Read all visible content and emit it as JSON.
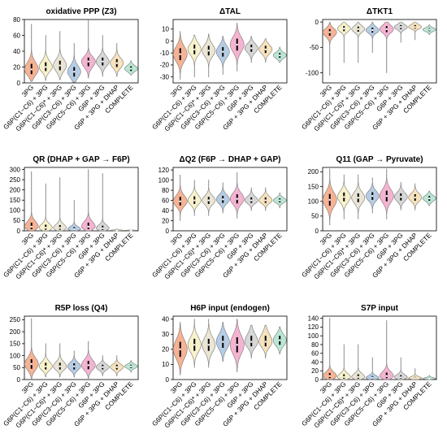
{
  "colors": [
    "#f4a582",
    "#f7f0c2",
    "#e6e0cc",
    "#a9c4e0",
    "#f2a7c9",
    "#d0d0d0",
    "#f4ddb0",
    "#aee3cc"
  ],
  "categories": [
    "3PG",
    "G6P(C1−C6) + 3PG",
    "G6P(C1−C6)* + 3PG",
    "G6P(C3−C6) + 3PG",
    "G6P(C5−C6) + 3PG",
    "G6P + 3PG",
    "G6P + 3PG + DHAP",
    "COMPLETE"
  ],
  "chart_data": [
    {
      "type": "violin",
      "title": "oxidative PPP (Z3)",
      "ylim": [
        0,
        80
      ],
      "yticks": [
        0,
        20,
        40,
        60,
        80
      ],
      "series": [
        {
          "median": 17,
          "q1": 11,
          "q3": 24,
          "min": 2,
          "max": 74,
          "width": 0.36
        },
        {
          "median": 20,
          "q1": 15,
          "q3": 26,
          "min": 3,
          "max": 60,
          "width": 0.34
        },
        {
          "median": 22,
          "q1": 16,
          "q3": 28,
          "min": 4,
          "max": 65,
          "width": 0.34
        },
        {
          "median": 14,
          "q1": 8,
          "q3": 20,
          "min": 1,
          "max": 50,
          "width": 0.34
        },
        {
          "median": 27,
          "q1": 21,
          "q3": 32,
          "min": 6,
          "max": 80,
          "width": 0.36
        },
        {
          "median": 27,
          "q1": 22,
          "q3": 32,
          "min": 8,
          "max": 60,
          "width": 0.34
        },
        {
          "median": 25,
          "q1": 20,
          "q3": 30,
          "min": 8,
          "max": 50,
          "width": 0.34
        },
        {
          "median": 18,
          "q1": 15,
          "q3": 21,
          "min": 10,
          "max": 28,
          "width": 0.34
        }
      ]
    },
    {
      "type": "violin",
      "title": "ΔTAL",
      "ylim": [
        -35,
        18
      ],
      "yticks": [
        -30,
        -20,
        -10,
        0,
        10
      ],
      "series": [
        {
          "median": -11,
          "q1": -16,
          "q3": -6,
          "min": -32,
          "max": 8,
          "width": 0.36
        },
        {
          "median": -7,
          "q1": -11,
          "q3": -3,
          "min": -30,
          "max": 5,
          "width": 0.34
        },
        {
          "median": -8,
          "q1": -12,
          "q3": -4,
          "min": -30,
          "max": 6,
          "width": 0.34
        },
        {
          "median": -9,
          "q1": -13,
          "q3": -5,
          "min": -28,
          "max": 4,
          "width": 0.34
        },
        {
          "median": -3,
          "q1": -8,
          "q3": 2,
          "min": -25,
          "max": 15,
          "width": 0.36
        },
        {
          "median": -6,
          "q1": -9,
          "q3": -3,
          "min": -18,
          "max": 4,
          "width": 0.34
        },
        {
          "median": -7,
          "q1": -10,
          "q3": -4,
          "min": -18,
          "max": 2,
          "width": 0.34
        },
        {
          "median": -12,
          "q1": -14,
          "q3": -10,
          "min": -18,
          "max": -5,
          "width": 0.34
        }
      ]
    },
    {
      "type": "violin",
      "title": "ΔTKT1",
      "ylim": [
        -120,
        5
      ],
      "yticks": [
        -100,
        -50,
        0
      ],
      "series": [
        {
          "median": -20,
          "q1": -27,
          "q3": -14,
          "min": -105,
          "max": 0,
          "width": 0.36
        },
        {
          "median": -13,
          "q1": -18,
          "q3": -8,
          "min": -80,
          "max": 0,
          "width": 0.34
        },
        {
          "median": -14,
          "q1": -19,
          "q3": -9,
          "min": -80,
          "max": 0,
          "width": 0.34
        },
        {
          "median": -16,
          "q1": -21,
          "q3": -11,
          "min": -60,
          "max": 0,
          "width": 0.34
        },
        {
          "median": -14,
          "q1": -20,
          "q3": -8,
          "min": -100,
          "max": 0,
          "width": 0.36
        },
        {
          "median": -10,
          "q1": -14,
          "q3": -6,
          "min": -40,
          "max": 0,
          "width": 0.34
        },
        {
          "median": -10,
          "q1": -13,
          "q3": -6,
          "min": -35,
          "max": 0,
          "width": 0.34
        },
        {
          "median": -15,
          "q1": -18,
          "q3": -12,
          "min": -25,
          "max": -5,
          "width": 0.34
        }
      ]
    },
    {
      "type": "violin",
      "title": "QR (DHAP + GAP → F6P)",
      "ylim": [
        0,
        310
      ],
      "yticks": [
        0,
        50,
        100,
        150,
        200,
        250,
        300
      ],
      "series": [
        {
          "median": 20,
          "q1": 8,
          "q3": 40,
          "min": 0,
          "max": 290,
          "width": 0.36
        },
        {
          "median": 15,
          "q1": 5,
          "q3": 30,
          "min": 0,
          "max": 230,
          "width": 0.34
        },
        {
          "median": 14,
          "q1": 5,
          "q3": 28,
          "min": 0,
          "max": 260,
          "width": 0.34
        },
        {
          "median": 8,
          "q1": 3,
          "q3": 18,
          "min": 0,
          "max": 150,
          "width": 0.34
        },
        {
          "median": 20,
          "q1": 8,
          "q3": 40,
          "min": 0,
          "max": 300,
          "width": 0.36
        },
        {
          "median": 12,
          "q1": 4,
          "q3": 25,
          "min": 0,
          "max": 280,
          "width": 0.34
        },
        {
          "median": 2,
          "q1": 1,
          "q3": 4,
          "min": 0,
          "max": 10,
          "width": 0.34
        },
        {
          "median": 2,
          "q1": 1,
          "q3": 3,
          "min": 0,
          "max": 6,
          "width": 0.34
        }
      ]
    },
    {
      "type": "violin",
      "title": "ΔQ2 (F6P → DHAP + GAP)",
      "ylim": [
        0,
        125
      ],
      "yticks": [
        0,
        20,
        40,
        60,
        80,
        100,
        120
      ],
      "series": [
        {
          "median": 58,
          "q1": 50,
          "q3": 67,
          "min": 20,
          "max": 110,
          "width": 0.36
        },
        {
          "median": 60,
          "q1": 53,
          "q3": 68,
          "min": 30,
          "max": 100,
          "width": 0.34
        },
        {
          "median": 60,
          "q1": 53,
          "q3": 67,
          "min": 30,
          "max": 100,
          "width": 0.34
        },
        {
          "median": 62,
          "q1": 55,
          "q3": 69,
          "min": 35,
          "max": 95,
          "width": 0.34
        },
        {
          "median": 63,
          "q1": 54,
          "q3": 72,
          "min": 25,
          "max": 115,
          "width": 0.36
        },
        {
          "median": 60,
          "q1": 55,
          "q3": 66,
          "min": 40,
          "max": 85,
          "width": 0.34
        },
        {
          "median": 60,
          "q1": 55,
          "q3": 66,
          "min": 40,
          "max": 85,
          "width": 0.34
        },
        {
          "median": 60,
          "q1": 56,
          "q3": 64,
          "min": 45,
          "max": 75,
          "width": 0.34
        }
      ]
    },
    {
      "type": "violin",
      "title": "Q11 (GAP → Pyruvate)",
      "ylim": [
        0,
        215
      ],
      "yticks": [
        0,
        50,
        100,
        150,
        200
      ],
      "series": [
        {
          "median": 105,
          "q1": 85,
          "q3": 125,
          "min": 20,
          "max": 210,
          "width": 0.36
        },
        {
          "median": 115,
          "q1": 100,
          "q3": 130,
          "min": 40,
          "max": 190,
          "width": 0.34
        },
        {
          "median": 112,
          "q1": 97,
          "q3": 127,
          "min": 40,
          "max": 190,
          "width": 0.34
        },
        {
          "median": 118,
          "q1": 105,
          "q3": 131,
          "min": 60,
          "max": 180,
          "width": 0.34
        },
        {
          "median": 118,
          "q1": 100,
          "q3": 136,
          "min": 40,
          "max": 210,
          "width": 0.36
        },
        {
          "median": 115,
          "q1": 103,
          "q3": 127,
          "min": 70,
          "max": 165,
          "width": 0.34
        },
        {
          "median": 113,
          "q1": 102,
          "q3": 124,
          "min": 70,
          "max": 160,
          "width": 0.34
        },
        {
          "median": 110,
          "q1": 102,
          "q3": 118,
          "min": 85,
          "max": 135,
          "width": 0.34
        }
      ]
    },
    {
      "type": "violin",
      "title": "R5P loss (Q4)",
      "ylim": [
        0,
        265
      ],
      "yticks": [
        0,
        50,
        100,
        150,
        200,
        250
      ],
      "series": [
        {
          "median": 65,
          "q1": 45,
          "q3": 85,
          "min": 5,
          "max": 255,
          "width": 0.36
        },
        {
          "median": 55,
          "q1": 42,
          "q3": 70,
          "min": 10,
          "max": 150,
          "width": 0.34
        },
        {
          "median": 55,
          "q1": 42,
          "q3": 70,
          "min": 10,
          "max": 150,
          "width": 0.34
        },
        {
          "median": 55,
          "q1": 42,
          "q3": 68,
          "min": 10,
          "max": 120,
          "width": 0.34
        },
        {
          "median": 60,
          "q1": 43,
          "q3": 78,
          "min": 5,
          "max": 160,
          "width": 0.36
        },
        {
          "median": 52,
          "q1": 42,
          "q3": 62,
          "min": 15,
          "max": 100,
          "width": 0.34
        },
        {
          "median": 52,
          "q1": 42,
          "q3": 62,
          "min": 15,
          "max": 100,
          "width": 0.34
        },
        {
          "median": 55,
          "q1": 48,
          "q3": 62,
          "min": 30,
          "max": 80,
          "width": 0.34
        }
      ]
    },
    {
      "type": "violin",
      "title": "H6P input (endogen)",
      "ylim": [
        0,
        42
      ],
      "yticks": [
        0,
        10,
        20,
        30,
        40
      ],
      "series": [
        {
          "median": 20,
          "q1": 15,
          "q3": 25,
          "min": 3,
          "max": 38,
          "width": 0.36
        },
        {
          "median": 23,
          "q1": 19,
          "q3": 27,
          "min": 8,
          "max": 40,
          "width": 0.34
        },
        {
          "median": 23,
          "q1": 19,
          "q3": 27,
          "min": 8,
          "max": 40,
          "width": 0.34
        },
        {
          "median": 25,
          "q1": 21,
          "q3": 29,
          "min": 12,
          "max": 38,
          "width": 0.34
        },
        {
          "median": 23,
          "q1": 18,
          "q3": 28,
          "min": 5,
          "max": 40,
          "width": 0.36
        },
        {
          "median": 25,
          "q1": 22,
          "q3": 29,
          "min": 14,
          "max": 36,
          "width": 0.34
        },
        {
          "median": 25,
          "q1": 22,
          "q3": 29,
          "min": 14,
          "max": 36,
          "width": 0.34
        },
        {
          "median": 26,
          "q1": 23,
          "q3": 29,
          "min": 17,
          "max": 35,
          "width": 0.34
        }
      ]
    },
    {
      "type": "violin",
      "title": "S7P input",
      "ylim": [
        0,
        145
      ],
      "yticks": [
        0,
        20,
        40,
        60,
        80,
        100,
        120,
        140
      ],
      "series": [
        {
          "median": 8,
          "q1": 3,
          "q3": 15,
          "min": 0,
          "max": 140,
          "width": 0.36
        },
        {
          "median": 6,
          "q1": 2,
          "q3": 12,
          "min": 0,
          "max": 80,
          "width": 0.34
        },
        {
          "median": 6,
          "q1": 2,
          "q3": 12,
          "min": 0,
          "max": 80,
          "width": 0.34
        },
        {
          "median": 4,
          "q1": 1,
          "q3": 8,
          "min": 0,
          "max": 50,
          "width": 0.34
        },
        {
          "median": 8,
          "q1": 3,
          "q3": 16,
          "min": 0,
          "max": 135,
          "width": 0.36
        },
        {
          "median": 5,
          "q1": 2,
          "q3": 10,
          "min": 0,
          "max": 50,
          "width": 0.34
        },
        {
          "median": 3,
          "q1": 1,
          "q3": 6,
          "min": 0,
          "max": 25,
          "width": 0.34
        },
        {
          "median": 2,
          "q1": 1,
          "q3": 4,
          "min": 0,
          "max": 10,
          "width": 0.34
        }
      ]
    }
  ]
}
